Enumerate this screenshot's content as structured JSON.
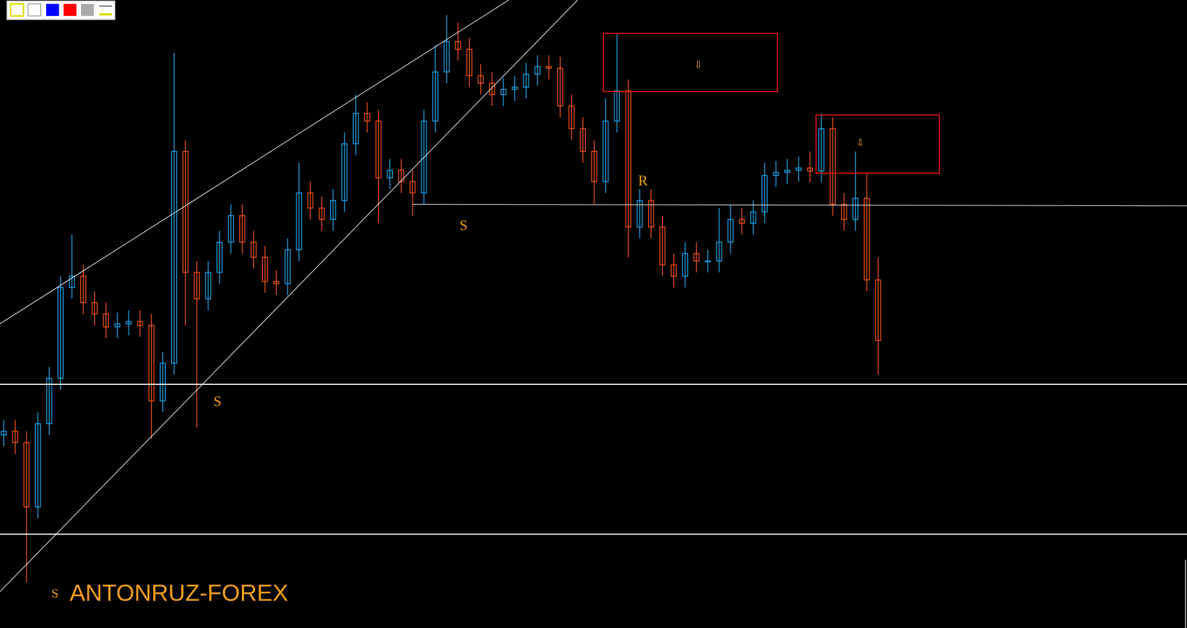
{
  "chart_data": {
    "type": "candlestick",
    "up_color": "#1e9fe0",
    "down_color": "#e8501c",
    "ylim": [
      0,
      830
    ],
    "open": [
      255,
      260,
      245,
      160,
      270,
      330,
      450,
      465,
      430,
      415,
      398,
      402,
      405,
      400,
      300,
      350,
      630,
      470,
      435,
      470,
      510,
      545,
      510,
      490,
      458,
      455,
      500,
      575,
      555,
      540,
      565,
      640,
      680,
      670,
      595,
      605,
      590,
      575,
      670,
      735,
      775,
      765,
      730,
      720,
      705,
      712,
      715,
      732,
      742,
      740,
      690,
      660,
      630,
      590,
      670,
      710,
      530,
      565,
      530,
      480,
      465,
      495,
      485,
      485,
      510,
      540,
      535,
      550,
      598,
      602,
      605,
      608,
      604,
      660,
      560,
      540,
      568,
      460
    ],
    "high": [
      275,
      275,
      260,
      285,
      345,
      465,
      520,
      480,
      445,
      430,
      417,
      420,
      420,
      415,
      365,
      760,
      645,
      485,
      485,
      525,
      560,
      560,
      525,
      505,
      473,
      515,
      615,
      590,
      570,
      580,
      655,
      705,
      695,
      685,
      620,
      620,
      605,
      685,
      770,
      810,
      800,
      780,
      745,
      735,
      727,
      730,
      747,
      757,
      757,
      755,
      705,
      675,
      645,
      700,
      785,
      725,
      580,
      580,
      545,
      495,
      510,
      510,
      500,
      555,
      560,
      555,
      565,
      615,
      617,
      620,
      623,
      630,
      680,
      675,
      575,
      630,
      600,
      490
    ],
    "low": [
      240,
      230,
      60,
      145,
      255,
      315,
      435,
      415,
      400,
      383,
      383,
      387,
      385,
      250,
      285,
      335,
      400,
      265,
      420,
      455,
      495,
      495,
      475,
      443,
      440,
      440,
      485,
      540,
      525,
      525,
      550,
      625,
      655,
      535,
      580,
      575,
      545,
      560,
      655,
      720,
      750,
      715,
      705,
      690,
      690,
      697,
      700,
      717,
      725,
      675,
      645,
      615,
      560,
      575,
      655,
      490,
      515,
      515,
      465,
      450,
      450,
      470,
      470,
      470,
      495,
      520,
      520,
      535,
      583,
      587,
      590,
      589,
      589,
      545,
      525,
      525,
      445,
      335
    ],
    "close": [
      260,
      245,
      160,
      270,
      330,
      450,
      465,
      430,
      415,
      398,
      402,
      405,
      400,
      300,
      350,
      630,
      470,
      435,
      470,
      510,
      545,
      510,
      490,
      458,
      455,
      500,
      575,
      555,
      540,
      565,
      640,
      680,
      670,
      595,
      605,
      590,
      575,
      670,
      735,
      775,
      765,
      730,
      720,
      705,
      712,
      715,
      732,
      742,
      740,
      690,
      660,
      630,
      590,
      670,
      710,
      530,
      565,
      530,
      480,
      465,
      495,
      485,
      485,
      510,
      540,
      535,
      550,
      598,
      602,
      605,
      608,
      604,
      660,
      560,
      540,
      568,
      460,
      380
    ],
    "annotations": [
      "S",
      "S",
      "R",
      "S",
      "⇩",
      "⇩"
    ],
    "watermark": "ANTONRUZ-FOREX"
  }
}
